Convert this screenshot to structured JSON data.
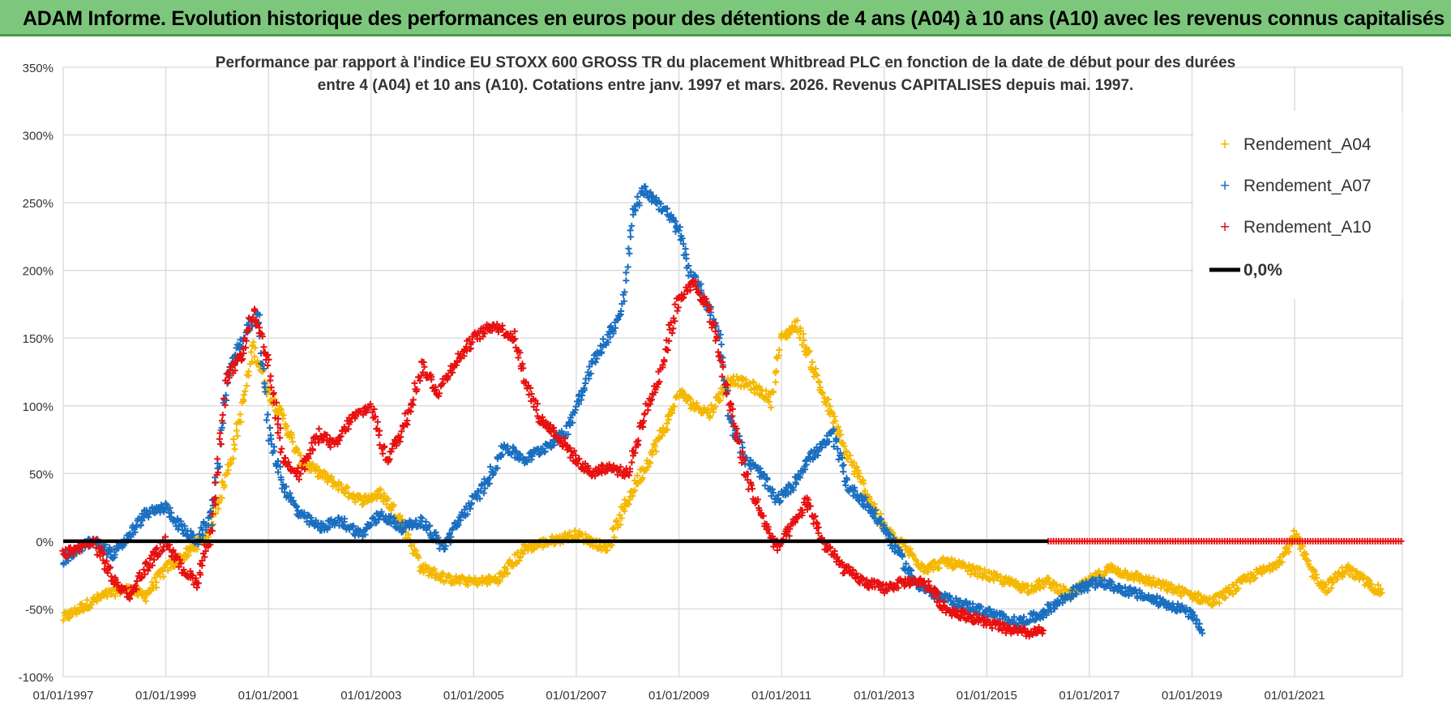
{
  "header": {
    "title": "ADAM Informe. Evolution historique des performances en euros pour des détentions de 4 ans (A04) à 10 ans (A10) avec les revenus connus capitalisés"
  },
  "chart_data": {
    "type": "scatter",
    "title_line1": "Performance par rapport à l'indice EU STOXX 600 GROSS TR  du placement Whitbread PLC en fonction de la date de début pour des durées",
    "title_line2": "entre 4 (A04) et 10 ans (A10).  Cotations entre janv. 1997 et mars. 2026.  Revenus CAPITALISES  depuis mai. 1997.",
    "xlabel": "",
    "ylabel": "",
    "ylim": [
      -100,
      350
    ],
    "xlim": [
      1997.0,
      2023.1
    ],
    "yticks": [
      -100,
      -50,
      0,
      50,
      100,
      150,
      200,
      250,
      300,
      350
    ],
    "ytick_labels": [
      "-100%",
      "-50%",
      "0%",
      "50%",
      "100%",
      "150%",
      "200%",
      "250%",
      "300%",
      "350%"
    ],
    "xtick_labels": [
      "01/01/1997",
      "01/01/1999",
      "01/01/2001",
      "01/01/2003",
      "01/01/2005",
      "01/01/2007",
      "01/01/2009",
      "01/01/2011",
      "01/01/2013",
      "01/01/2015",
      "01/01/2017",
      "01/01/2019",
      "01/01/2021"
    ],
    "xtick_values": [
      1997,
      1999,
      2001,
      2003,
      2005,
      2007,
      2009,
      2011,
      2013,
      2015,
      2017,
      2019,
      2021
    ],
    "legend": [
      {
        "label": "Rendement_A04",
        "color": "#f5b800",
        "marker": "+"
      },
      {
        "label": "Rendement_A07",
        "color": "#1a6fc0",
        "marker": "+"
      },
      {
        "label": "Rendement_A10",
        "color": "#e81010",
        "marker": "+"
      },
      {
        "label": "0,0%",
        "color": "#000000",
        "marker": "line"
      }
    ],
    "series": [
      {
        "name": "Rendement_A04",
        "color": "#f5b800",
        "x": [
          1997.0,
          1997.4,
          1997.8,
          1998.2,
          1998.6,
          1999.0,
          1999.4,
          1999.8,
          2000.2,
          2000.5,
          2000.7,
          2001.0,
          2001.3,
          2001.6,
          2002.0,
          2002.4,
          2002.8,
          2003.2,
          2003.6,
          2004.0,
          2004.5,
          2005.0,
          2005.5,
          2006.0,
          2006.5,
          2007.0,
          2007.3,
          2007.6,
          2008.0,
          2008.4,
          2008.8,
          2009.0,
          2009.3,
          2009.6,
          2010.0,
          2010.4,
          2010.8,
          2011.0,
          2011.3,
          2011.6,
          2011.9,
          2012.2,
          2012.6,
          2013.0,
          2013.4,
          2013.8,
          2014.2,
          2014.6,
          2015.0,
          2015.4,
          2015.8,
          2016.2,
          2016.6,
          2017.0,
          2017.4,
          2017.8,
          2018.2,
          2018.6,
          2019.0,
          2019.4,
          2019.8,
          2020.2,
          2020.5,
          2020.8,
          2021.0,
          2021.3,
          2021.6,
          2022.0,
          2022.4,
          2022.7
        ],
        "y": [
          -57,
          -48,
          -40,
          -35,
          -40,
          -20,
          -10,
          5,
          50,
          100,
          145,
          110,
          90,
          60,
          50,
          40,
          30,
          35,
          15,
          -20,
          -28,
          -30,
          -28,
          -5,
          0,
          5,
          0,
          -5,
          30,
          60,
          90,
          110,
          100,
          95,
          120,
          115,
          105,
          150,
          160,
          130,
          100,
          70,
          40,
          10,
          -5,
          -20,
          -15,
          -20,
          -25,
          -30,
          -35,
          -30,
          -40,
          -30,
          -20,
          -25,
          -30,
          -35,
          -40,
          -45,
          -35,
          -25,
          -20,
          -10,
          5,
          -20,
          -35,
          -20,
          -30,
          -38
        ]
      },
      {
        "name": "Rendement_A07",
        "color": "#1a6fc0",
        "x": [
          1997.0,
          1997.3,
          1997.6,
          1998.0,
          1998.3,
          1998.6,
          1999.0,
          1999.3,
          1999.6,
          1999.9,
          2000.2,
          2000.5,
          2000.8,
          2001.0,
          2001.3,
          2001.6,
          2002.0,
          2002.4,
          2002.8,
          2003.2,
          2003.6,
          2004.0,
          2004.4,
          2004.8,
          2005.2,
          2005.6,
          2006.0,
          2006.4,
          2006.8,
          2007.0,
          2007.3,
          2007.6,
          2007.9,
          2008.1,
          2008.3,
          2008.6,
          2009.0,
          2009.2,
          2009.5,
          2009.8,
          2010.0,
          2010.3,
          2010.6,
          2010.9,
          2011.2,
          2011.5,
          2011.8,
          2012.0,
          2012.3,
          2012.6,
          2013.0,
          2013.3,
          2013.6,
          2014.0,
          2014.4,
          2014.8,
          2015.2,
          2015.6,
          2016.0,
          2016.4,
          2016.8,
          2017.2,
          2017.6,
          2018.0,
          2018.4,
          2018.8,
          2019.0,
          2019.2
        ],
        "y": [
          -15,
          -5,
          0,
          -10,
          5,
          20,
          25,
          10,
          0,
          20,
          120,
          150,
          170,
          80,
          40,
          20,
          10,
          15,
          5,
          20,
          10,
          15,
          -5,
          20,
          40,
          70,
          60,
          70,
          80,
          100,
          130,
          150,
          170,
          240,
          260,
          250,
          230,
          200,
          180,
          150,
          90,
          60,
          50,
          30,
          40,
          60,
          70,
          80,
          40,
          30,
          10,
          -10,
          -30,
          -40,
          -45,
          -50,
          -55,
          -60,
          -55,
          -45,
          -35,
          -30,
          -35,
          -40,
          -45,
          -50,
          -55,
          -68
        ]
      },
      {
        "name": "Rendement_A10",
        "color": "#e81010",
        "x": [
          1997.0,
          1997.3,
          1997.6,
          1998.0,
          1998.3,
          1998.6,
          1999.0,
          1999.3,
          1999.6,
          1999.9,
          2000.2,
          2000.5,
          2000.7,
          2001.0,
          2001.3,
          2001.6,
          2002.0,
          2002.3,
          2002.6,
          2003.0,
          2003.3,
          2003.6,
          2004.0,
          2004.3,
          2004.6,
          2005.0,
          2005.4,
          2005.8,
          2006.0,
          2006.3,
          2006.6,
          2007.0,
          2007.3,
          2007.6,
          2008.0,
          2008.3,
          2008.6,
          2009.0,
          2009.3,
          2009.6,
          2010.0,
          2010.3,
          2010.6,
          2010.9,
          2011.2,
          2011.5,
          2011.8,
          2012.2,
          2012.6,
          2013.0,
          2013.4,
          2013.8,
          2014.2,
          2014.6,
          2015.0,
          2015.4,
          2015.8,
          2016.1
        ],
        "y": [
          -10,
          -5,
          0,
          -30,
          -40,
          -20,
          0,
          -20,
          -30,
          10,
          120,
          140,
          170,
          130,
          60,
          50,
          80,
          70,
          90,
          100,
          60,
          80,
          130,
          110,
          130,
          150,
          160,
          150,
          120,
          90,
          80,
          60,
          50,
          55,
          50,
          90,
          120,
          180,
          190,
          170,
          100,
          50,
          20,
          -5,
          10,
          30,
          0,
          -20,
          -30,
          -35,
          -30,
          -30,
          -50,
          -55,
          -60,
          -65,
          -68,
          -66
        ]
      },
      {
        "name": "Rendement_A10",
        "color": "#e81010",
        "style": "flat",
        "x": [
          2016.2,
          2023.1
        ],
        "y": [
          0,
          0
        ]
      },
      {
        "name": "0,0%",
        "color": "#000000",
        "style": "line",
        "x": [
          1997.0,
          2016.2
        ],
        "y": [
          0,
          0
        ]
      }
    ]
  }
}
